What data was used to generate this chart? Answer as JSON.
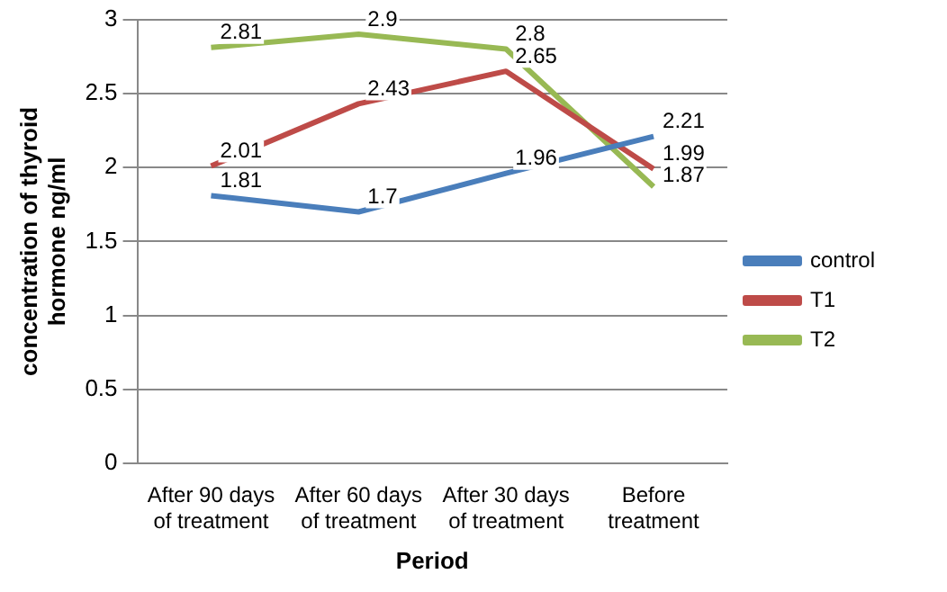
{
  "chart_data": {
    "type": "line",
    "xlabel": "Period",
    "ylabel": "concentration of thyroid hormone ng/ml",
    "categories": [
      "After 90 days of treatment",
      "After 60 days of treatment",
      "After 30 days of treatment",
      "Before treatment"
    ],
    "series": [
      {
        "name": "control",
        "color": "#4a7ebb",
        "values": [
          1.81,
          1.7,
          1.96,
          2.21
        ]
      },
      {
        "name": "T1",
        "color": "#be4b48",
        "values": [
          2.01,
          2.43,
          2.65,
          1.99
        ]
      },
      {
        "name": "T2",
        "color": "#98b954",
        "values": [
          2.81,
          2.9,
          2.8,
          1.87
        ]
      }
    ],
    "ylim": [
      0,
      3
    ],
    "yticks": [
      0,
      0.5,
      1,
      1.5,
      2,
      2.5,
      3
    ],
    "grid": "y",
    "legend": "right",
    "marker": "none",
    "data_labels": true
  }
}
